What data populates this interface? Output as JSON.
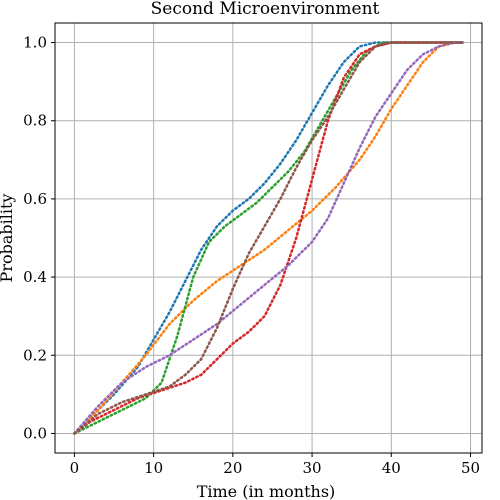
{
  "chart_data": {
    "type": "line",
    "title": "Second Microenvironment",
    "xlabel": "Time (in months)",
    "ylabel": "Probability",
    "xlim": [
      -2.45,
      51.45
    ],
    "ylim": [
      -0.05,
      1.05
    ],
    "xticks": [
      0,
      10,
      20,
      30,
      40,
      50
    ],
    "yticks": [
      0.0,
      0.2,
      0.4,
      0.6,
      0.8,
      1.0
    ],
    "xtick_labels": [
      "0",
      "10",
      "20",
      "30",
      "40",
      "50"
    ],
    "ytick_labels": [
      "0.0",
      "0.2",
      "0.4",
      "0.6",
      "0.8",
      "1.0"
    ],
    "grid": true,
    "line_style": "dotted",
    "series": [
      {
        "color": "#1f77b4",
        "points": [
          [
            0,
            0
          ],
          [
            2,
            0.04
          ],
          [
            5,
            0.1
          ],
          [
            8,
            0.17
          ],
          [
            10,
            0.24
          ],
          [
            12,
            0.31
          ],
          [
            14,
            0.39
          ],
          [
            16,
            0.47
          ],
          [
            18,
            0.53
          ],
          [
            20,
            0.57
          ],
          [
            22,
            0.6
          ],
          [
            24,
            0.64
          ],
          [
            26,
            0.69
          ],
          [
            28,
            0.75
          ],
          [
            30,
            0.82
          ],
          [
            32,
            0.89
          ],
          [
            34,
            0.95
          ],
          [
            36,
            0.99
          ],
          [
            38,
            1.0
          ],
          [
            40,
            1.0
          ],
          [
            45,
            1.0
          ],
          [
            49,
            1.0
          ]
        ]
      },
      {
        "color": "#ff7f0e",
        "points": [
          [
            0,
            0
          ],
          [
            3,
            0.06
          ],
          [
            6,
            0.13
          ],
          [
            9,
            0.2
          ],
          [
            12,
            0.28
          ],
          [
            15,
            0.34
          ],
          [
            18,
            0.39
          ],
          [
            21,
            0.43
          ],
          [
            24,
            0.47
          ],
          [
            27,
            0.52
          ],
          [
            30,
            0.57
          ],
          [
            33,
            0.63
          ],
          [
            36,
            0.7
          ],
          [
            38,
            0.76
          ],
          [
            40,
            0.83
          ],
          [
            42,
            0.89
          ],
          [
            44,
            0.95
          ],
          [
            46,
            0.99
          ],
          [
            48,
            1.0
          ],
          [
            49,
            1.0
          ]
        ]
      },
      {
        "color": "#2ca02c",
        "points": [
          [
            0,
            0
          ],
          [
            3,
            0.03
          ],
          [
            6,
            0.06
          ],
          [
            9,
            0.09
          ],
          [
            11,
            0.13
          ],
          [
            13,
            0.25
          ],
          [
            15,
            0.4
          ],
          [
            17,
            0.49
          ],
          [
            19,
            0.53
          ],
          [
            21,
            0.56
          ],
          [
            23,
            0.59
          ],
          [
            25,
            0.63
          ],
          [
            27,
            0.67
          ],
          [
            29,
            0.72
          ],
          [
            31,
            0.79
          ],
          [
            33,
            0.86
          ],
          [
            35,
            0.93
          ],
          [
            37,
            0.98
          ],
          [
            39,
            1.0
          ],
          [
            45,
            1.0
          ],
          [
            49,
            1.0
          ]
        ]
      },
      {
        "color": "#d62728",
        "points": [
          [
            0,
            0
          ],
          [
            2,
            0.03
          ],
          [
            5,
            0.06
          ],
          [
            8,
            0.09
          ],
          [
            11,
            0.11
          ],
          [
            14,
            0.13
          ],
          [
            16,
            0.15
          ],
          [
            18,
            0.19
          ],
          [
            20,
            0.23
          ],
          [
            22,
            0.26
          ],
          [
            24,
            0.3
          ],
          [
            26,
            0.38
          ],
          [
            28,
            0.5
          ],
          [
            30,
            0.65
          ],
          [
            32,
            0.8
          ],
          [
            34,
            0.91
          ],
          [
            36,
            0.97
          ],
          [
            38,
            0.99
          ],
          [
            40,
            1.0
          ],
          [
            49,
            1.0
          ]
        ]
      },
      {
        "color": "#9467bd",
        "points": [
          [
            0,
            0
          ],
          [
            3,
            0.07
          ],
          [
            6,
            0.13
          ],
          [
            9,
            0.17
          ],
          [
            12,
            0.2
          ],
          [
            15,
            0.24
          ],
          [
            18,
            0.28
          ],
          [
            21,
            0.33
          ],
          [
            24,
            0.38
          ],
          [
            27,
            0.43
          ],
          [
            30,
            0.49
          ],
          [
            32,
            0.55
          ],
          [
            34,
            0.64
          ],
          [
            36,
            0.73
          ],
          [
            38,
            0.81
          ],
          [
            40,
            0.87
          ],
          [
            42,
            0.93
          ],
          [
            44,
            0.97
          ],
          [
            46,
            0.99
          ],
          [
            48,
            1.0
          ],
          [
            49,
            1.0
          ]
        ]
      },
      {
        "color": "#8c564b",
        "points": [
          [
            0,
            0
          ],
          [
            3,
            0.05
          ],
          [
            6,
            0.08
          ],
          [
            9,
            0.1
          ],
          [
            12,
            0.12
          ],
          [
            14,
            0.15
          ],
          [
            16,
            0.19
          ],
          [
            18,
            0.27
          ],
          [
            20,
            0.37
          ],
          [
            22,
            0.46
          ],
          [
            24,
            0.53
          ],
          [
            26,
            0.6
          ],
          [
            28,
            0.68
          ],
          [
            30,
            0.75
          ],
          [
            32,
            0.81
          ],
          [
            34,
            0.88
          ],
          [
            36,
            0.95
          ],
          [
            38,
            0.99
          ],
          [
            40,
            1.0
          ],
          [
            49,
            1.0
          ]
        ]
      }
    ]
  }
}
